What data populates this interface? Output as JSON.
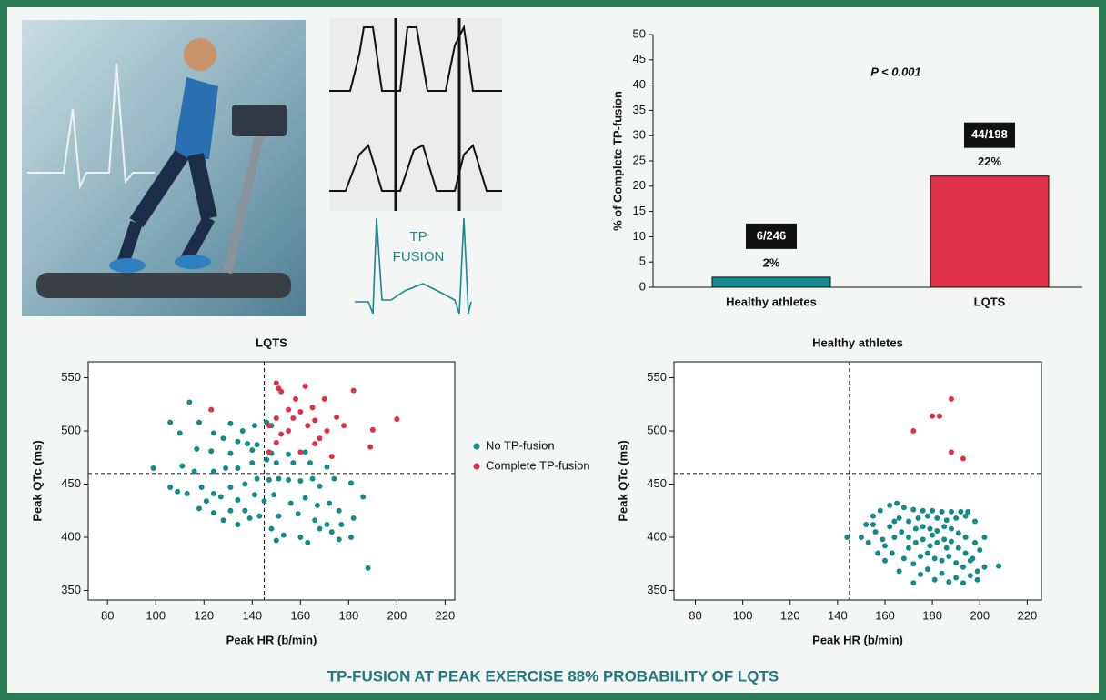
{
  "chart_data": [
    {
      "type": "bar",
      "annotation": "P < 0.001",
      "ylabel": "% of Complete TP-fusion",
      "categories": [
        "Healthy athletes",
        "LQTS"
      ],
      "values": [
        2,
        22
      ],
      "value_labels": [
        "2%",
        "22%"
      ],
      "count_labels": [
        "6/246",
        "44/198"
      ],
      "colors": [
        "#138a8c",
        "#e03048"
      ],
      "ylim": [
        0,
        50
      ],
      "yticks": [
        0,
        5,
        10,
        15,
        20,
        25,
        30,
        35,
        40,
        45,
        50
      ]
    },
    {
      "type": "scatter",
      "title": "LQTS",
      "xlabel": "Peak HR (b/min)",
      "ylabel": "Peak QTc (ms)",
      "xlim": [
        72,
        224
      ],
      "ylim": [
        341,
        565
      ],
      "xticks": [
        80,
        100,
        120,
        140,
        160,
        180,
        200,
        220
      ],
      "yticks": [
        350,
        400,
        450,
        500,
        550
      ],
      "ref_x": 145,
      "ref_y": 460,
      "legend": "right",
      "series": [
        {
          "name": "No TP-fusion",
          "color": "#138a8c",
          "x": [
            114,
            106,
            118,
            131,
            141,
            146,
            148,
            136,
            124,
            110,
            128,
            134,
            138,
            142,
            117,
            123,
            131,
            140,
            148,
            155,
            162,
            99,
            111,
            116,
            124,
            129,
            134,
            140,
            146,
            150,
            157,
            164,
            171,
            106,
            109,
            113,
            119,
            124,
            131,
            137,
            142,
            147,
            151,
            155,
            160,
            165,
            168,
            174,
            181,
            121,
            127,
            134,
            141,
            145,
            149,
            156,
            162,
            167,
            172,
            176,
            186,
            118,
            124,
            131,
            137,
            143,
            151,
            159,
            166,
            171,
            177,
            182,
            128,
            134,
            139,
            148,
            153,
            160,
            168,
            173,
            176,
            181,
            150,
            163,
            188
          ],
          "y": [
            527,
            508,
            508,
            507,
            505,
            508,
            505,
            500,
            498,
            498,
            493,
            490,
            488,
            487,
            483,
            481,
            479,
            482,
            479,
            478,
            480,
            465,
            467,
            462,
            462,
            465,
            465,
            470,
            473,
            470,
            470,
            470,
            466,
            447,
            443,
            441,
            447,
            441,
            447,
            450,
            455,
            454,
            455,
            454,
            453,
            455,
            448,
            455,
            451,
            434,
            438,
            435,
            440,
            434,
            440,
            432,
            437,
            430,
            432,
            425,
            438,
            427,
            423,
            425,
            425,
            420,
            420,
            422,
            416,
            412,
            412,
            418,
            416,
            412,
            418,
            408,
            402,
            400,
            408,
            405,
            398,
            400,
            397,
            395,
            371
          ]
        },
        {
          "name": "Complete TP-fusion",
          "color": "#e03048",
          "x": [
            150,
            151,
            152,
            162,
            182,
            170,
            158,
            165,
            123,
            155,
            160,
            157,
            175,
            150,
            166,
            200,
            190,
            178,
            163,
            171,
            155,
            147,
            152,
            168,
            150,
            166,
            189,
            173,
            160,
            147
          ],
          "y": [
            545,
            540,
            537,
            542,
            538,
            530,
            530,
            522,
            520,
            520,
            518,
            512,
            513,
            512,
            510,
            511,
            501,
            505,
            505,
            500,
            500,
            505,
            497,
            493,
            489,
            488,
            485,
            476,
            480,
            480
          ]
        }
      ]
    },
    {
      "type": "scatter",
      "title": "Healthy athletes",
      "xlabel": "Peak HR (b/min)",
      "ylabel": "Peak QTc (ms)",
      "xlim": [
        71,
        226
      ],
      "ylim": [
        341,
        565
      ],
      "xticks": [
        80,
        100,
        120,
        140,
        160,
        180,
        200,
        220
      ],
      "yticks": [
        350,
        400,
        450,
        500,
        550
      ],
      "ref_x": 145,
      "ref_y": 460,
      "series": [
        {
          "color": "#138a8c",
          "x": [
            144,
            152,
            155,
            158,
            162,
            165,
            168,
            172,
            176,
            180,
            184,
            188,
            192,
            195,
            150,
            153,
            156,
            159,
            162,
            166,
            170,
            174,
            178,
            182,
            186,
            190,
            194,
            198,
            157,
            160,
            164,
            167,
            170,
            173,
            176,
            179,
            182,
            185,
            188,
            191,
            194,
            198,
            202,
            160,
            163,
            166,
            170,
            173,
            176,
            179,
            182,
            185,
            188,
            191,
            194,
            197,
            200,
            168,
            172,
            175,
            178,
            181,
            184,
            187,
            190,
            193,
            196,
            199,
            175,
            178,
            181,
            184,
            187,
            190,
            193,
            196,
            199,
            208,
            172,
            202,
            180,
            186,
            164,
            155
          ],
          "y": [
            400,
            412,
            420,
            425,
            430,
            432,
            428,
            426,
            425,
            425,
            424,
            424,
            424,
            424,
            400,
            395,
            405,
            398,
            410,
            418,
            415,
            418,
            420,
            418,
            416,
            418,
            420,
            415,
            385,
            392,
            400,
            405,
            400,
            408,
            410,
            408,
            406,
            410,
            408,
            404,
            400,
            395,
            400,
            378,
            385,
            368,
            390,
            395,
            398,
            392,
            395,
            398,
            396,
            390,
            385,
            380,
            388,
            380,
            375,
            382,
            385,
            380,
            378,
            382,
            376,
            372,
            378,
            368,
            365,
            370,
            360,
            366,
            358,
            362,
            357,
            364,
            360,
            373,
            357,
            372,
            402,
            390,
            415,
            412
          ]
        },
        {
          "color": "#e03048",
          "x": [
            172,
            180,
            183,
            188,
            188,
            193
          ],
          "y": [
            500,
            514,
            514,
            530,
            480,
            474
          ]
        }
      ]
    }
  ],
  "illustration": {
    "label_lines": [
      "TP",
      "FUSION"
    ]
  },
  "footer": "TP-FUSION AT PEAK EXERCISE 88% PROBABILITY OF LQTS"
}
